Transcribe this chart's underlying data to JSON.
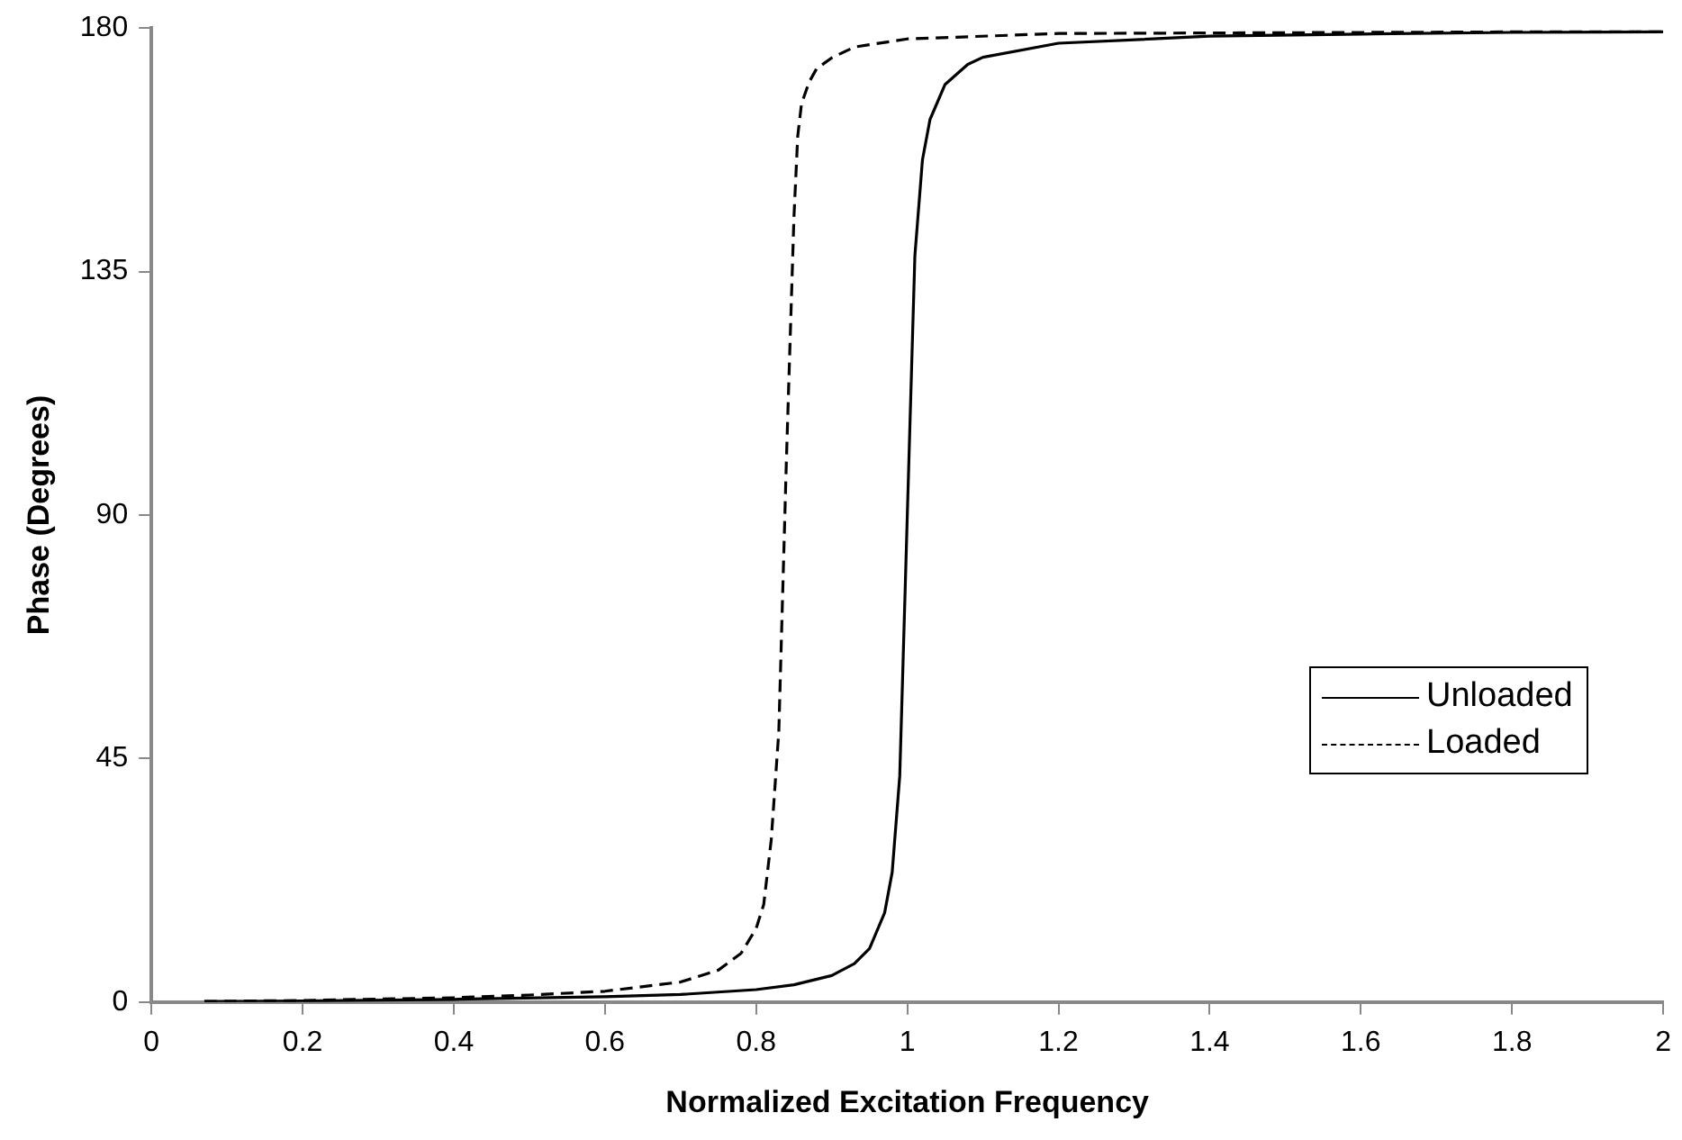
{
  "chart_data": {
    "type": "line",
    "xlabel": "Normalized Excitation Frequency",
    "ylabel": "Phase (Degrees)",
    "xlim": [
      0,
      2
    ],
    "xticks": [
      0,
      0.2,
      0.4,
      0.6,
      0.8,
      1,
      1.2,
      1.4,
      1.6,
      1.8,
      2
    ],
    "ylim": [
      0,
      180
    ],
    "yticks": [
      0,
      45,
      90,
      135,
      180
    ],
    "grid": false,
    "legend": "right",
    "marker": "none",
    "series": [
      {
        "name": "Unloaded",
        "color": "#000000",
        "line_style": "solid",
        "x": [
          0.07,
          0.2,
          0.4,
          0.6,
          0.7,
          0.8,
          0.85,
          0.9,
          0.93,
          0.95,
          0.97,
          0.98,
          0.99,
          1,
          1.01,
          1.02,
          1.03,
          1.05,
          1.08,
          1.1,
          1.2,
          1.4,
          1.6,
          1.8,
          2
        ],
        "values": [
          0.1,
          0.2,
          0.5,
          1,
          1.4,
          2.3,
          3.2,
          4.9,
          7.1,
          9.9,
          16.5,
          24,
          41.8,
          90,
          137.9,
          155.6,
          163.1,
          169.6,
          173.3,
          174.6,
          177.2,
          178.5,
          178.9,
          179.2,
          179.3
        ]
      },
      {
        "name": "Loaded",
        "color": "#000000",
        "line_style": "dashed",
        "x": [
          0.07,
          0.2,
          0.4,
          0.5,
          0.6,
          0.7,
          0.75,
          0.78,
          0.8,
          0.81,
          0.82,
          0.83,
          0.84,
          0.85,
          0.855,
          0.86,
          0.87,
          0.88,
          0.9,
          0.93,
          1,
          1.2,
          1.4,
          1.6,
          1.8,
          2
        ],
        "values": [
          0.1,
          0.3,
          0.8,
          1.3,
          2,
          3.7,
          5.9,
          9,
          13.6,
          18,
          30,
          50,
          100,
          145,
          160,
          166,
          170,
          172.5,
          174.5,
          176.5,
          178,
          179,
          179.1,
          179.2,
          179.3,
          179.3
        ]
      }
    ]
  }
}
